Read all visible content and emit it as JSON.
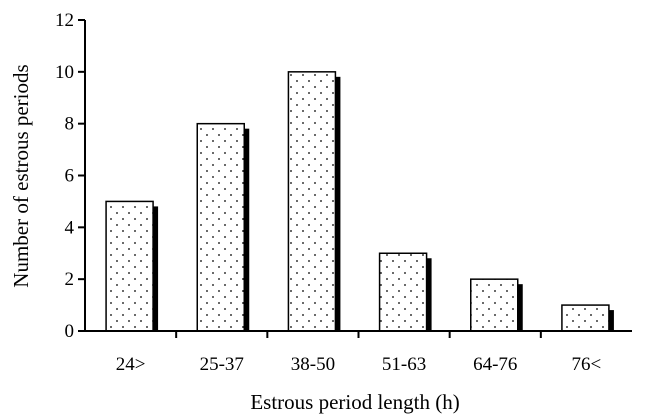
{
  "chart_data": {
    "type": "bar",
    "title": "",
    "xlabel": "Estrous period length (h)",
    "ylabel": "Number of estrous periods",
    "categories": [
      "24>",
      "25-37",
      "38-50",
      "51-63",
      "64-76",
      "76<"
    ],
    "values": [
      5,
      8,
      10,
      3,
      2,
      1
    ],
    "ylim": [
      0,
      12
    ],
    "yticks": [
      "0",
      "2",
      "4",
      "6",
      "8",
      "10",
      "12"
    ],
    "grid": false,
    "legend": "none",
    "bar_fill": "#ffffff",
    "bar_pattern": "dotted",
    "bar_shadow_color": "#000000"
  }
}
